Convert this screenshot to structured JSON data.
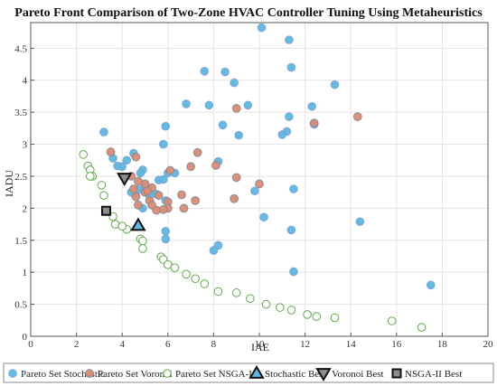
{
  "chart_data": {
    "type": "scatter",
    "title": "Pareto Front Comparison of Two-Zone HVAC Controller Tuning Using Metaheuristics",
    "xlabel": "IAE",
    "ylabel": "IADU",
    "xlim": [
      0,
      20
    ],
    "ylim": [
      0,
      4.9
    ],
    "xticks": [
      "0",
      "2",
      "4",
      "6",
      "8",
      "10",
      "12",
      "14",
      "16",
      "18",
      "20"
    ],
    "yticks": [
      "0",
      "0.5",
      "1",
      "1.5",
      "2",
      "2.5",
      "3",
      "3.5",
      "4",
      "4.5"
    ],
    "xtick_values": [
      0,
      2,
      4,
      6,
      8,
      10,
      12,
      14,
      16,
      18,
      20
    ],
    "ytick_values": [
      0,
      0.5,
      1,
      1.5,
      2,
      2.5,
      3,
      3.5,
      4,
      4.5
    ],
    "grid": true,
    "legend_position": "bottom",
    "colors": {
      "stochastic_fill": "#5bb8e0",
      "stochastic_edge": "#7a9fd6",
      "voronoi_fill": "#e08a72",
      "voronoi_edge": "#8c8c8c",
      "nsga_fill": "#ffffff",
      "nsga_edge": "#5fa84a",
      "best_edge": "#111111"
    },
    "series": [
      {
        "name": "Pareto Set Stochastic",
        "marker": "circle-stochastic",
        "points": [
          [
            10.1,
            4.82
          ],
          [
            11.3,
            4.63
          ],
          [
            11.4,
            4.2
          ],
          [
            7.6,
            4.14
          ],
          [
            8.5,
            4.13
          ],
          [
            8.9,
            3.96
          ],
          [
            13.3,
            3.93
          ],
          [
            6.8,
            3.63
          ],
          [
            7.8,
            3.61
          ],
          [
            9.5,
            3.61
          ],
          [
            12.3,
            3.59
          ],
          [
            11.3,
            3.43
          ],
          [
            5.9,
            3.28
          ],
          [
            8.4,
            3.3
          ],
          [
            12.4,
            3.31
          ],
          [
            3.2,
            3.19
          ],
          [
            11.2,
            3.2
          ],
          [
            9.1,
            3.14
          ],
          [
            11.0,
            3.15
          ],
          [
            5.8,
            3.0
          ],
          [
            3.6,
            2.78
          ],
          [
            4.2,
            2.75
          ],
          [
            4.5,
            2.86
          ],
          [
            3.8,
            2.66
          ],
          [
            4.0,
            2.65
          ],
          [
            8.2,
            2.73
          ],
          [
            4.9,
            2.6
          ],
          [
            5.6,
            2.44
          ],
          [
            4.8,
            2.55
          ],
          [
            5.8,
            2.45
          ],
          [
            6.0,
            2.55
          ],
          [
            6.3,
            2.55
          ],
          [
            9.8,
            2.27
          ],
          [
            11.5,
            2.3
          ],
          [
            4.4,
            2.25
          ],
          [
            4.7,
            2.29
          ],
          [
            5.0,
            2.35
          ],
          [
            5.2,
            2.2
          ],
          [
            5.5,
            2.22
          ],
          [
            5.9,
            2.12
          ],
          [
            4.9,
            2.0
          ],
          [
            10.2,
            1.86
          ],
          [
            14.4,
            1.79
          ],
          [
            5.9,
            1.64
          ],
          [
            11.4,
            1.66
          ],
          [
            5.9,
            1.52
          ],
          [
            8.2,
            1.42
          ],
          [
            8.0,
            1.34
          ],
          [
            11.5,
            1.01
          ],
          [
            17.5,
            0.8
          ]
        ]
      },
      {
        "name": "Pareto Set Voronoi",
        "marker": "circle-voronoi",
        "points": [
          [
            3.5,
            2.88
          ],
          [
            4.6,
            2.8
          ],
          [
            7.3,
            2.87
          ],
          [
            14.3,
            3.43
          ],
          [
            12.4,
            3.33
          ],
          [
            9.0,
            3.56
          ],
          [
            6.1,
            2.59
          ],
          [
            7.0,
            2.65
          ],
          [
            8.1,
            2.67
          ],
          [
            9.0,
            2.48
          ],
          [
            4.4,
            2.5
          ],
          [
            4.7,
            2.42
          ],
          [
            5.0,
            2.38
          ],
          [
            5.3,
            2.32
          ],
          [
            5.0,
            2.25
          ],
          [
            4.6,
            2.18
          ],
          [
            5.2,
            2.12
          ],
          [
            5.6,
            2.2
          ],
          [
            6.0,
            2.1
          ],
          [
            6.6,
            2.21
          ],
          [
            7.2,
            2.12
          ],
          [
            8.9,
            2.15
          ],
          [
            10.0,
            2.38
          ],
          [
            5.3,
            2.05
          ],
          [
            6.0,
            2.0
          ],
          [
            6.7,
            2.0
          ],
          [
            4.7,
            2.05
          ],
          [
            5.1,
            2.27
          ],
          [
            5.5,
            1.97
          ],
          [
            4.5,
            2.3
          ],
          [
            5.8,
            1.98
          ]
        ]
      },
      {
        "name": "Pareto Set NSGA-II",
        "marker": "circle-nsga",
        "points": [
          [
            2.3,
            2.84
          ],
          [
            2.5,
            2.66
          ],
          [
            2.6,
            2.6
          ],
          [
            2.7,
            2.5
          ],
          [
            3.1,
            2.36
          ],
          [
            3.6,
            1.87
          ],
          [
            3.7,
            1.75
          ],
          [
            4.2,
            1.67
          ],
          [
            4.8,
            1.52
          ],
          [
            4.9,
            1.49
          ],
          [
            4.9,
            1.37
          ],
          [
            5.7,
            1.24
          ],
          [
            5.8,
            1.2
          ],
          [
            6.0,
            1.12
          ],
          [
            6.3,
            1.07
          ],
          [
            6.8,
            0.97
          ],
          [
            7.2,
            0.9
          ],
          [
            7.6,
            0.82
          ],
          [
            8.2,
            0.7
          ],
          [
            9.0,
            0.68
          ],
          [
            9.6,
            0.59
          ],
          [
            10.3,
            0.5
          ],
          [
            10.9,
            0.45
          ],
          [
            11.4,
            0.41
          ],
          [
            12.1,
            0.34
          ],
          [
            12.5,
            0.31
          ],
          [
            13.3,
            0.29
          ],
          [
            15.8,
            0.24
          ],
          [
            17.1,
            0.14
          ],
          [
            2.6,
            2.5
          ],
          [
            4.0,
            1.72
          ],
          [
            3.2,
            2.2
          ]
        ]
      }
    ],
    "best_points": [
      {
        "name": "Stochastic Best",
        "marker": "triangle-up",
        "x": 4.7,
        "y": 1.73
      },
      {
        "name": "Voronoi Best",
        "marker": "triangle-down",
        "x": 4.1,
        "y": 2.47
      },
      {
        "name": "NSGA-II Best",
        "marker": "square",
        "x": 3.3,
        "y": 1.96
      }
    ],
    "legend": [
      {
        "label": "Pareto Set Stochastic",
        "marker": "circle-stochastic"
      },
      {
        "label": "Pareto Set Voronoi",
        "marker": "circle-voronoi"
      },
      {
        "label": "Pareto Set NSGA-II",
        "marker": "circle-nsga"
      },
      {
        "label": "Stochastic Best",
        "marker": "triangle-up"
      },
      {
        "label": "Voronoi Best",
        "marker": "triangle-down"
      },
      {
        "label": "NSGA-II Best",
        "marker": "square"
      }
    ]
  }
}
